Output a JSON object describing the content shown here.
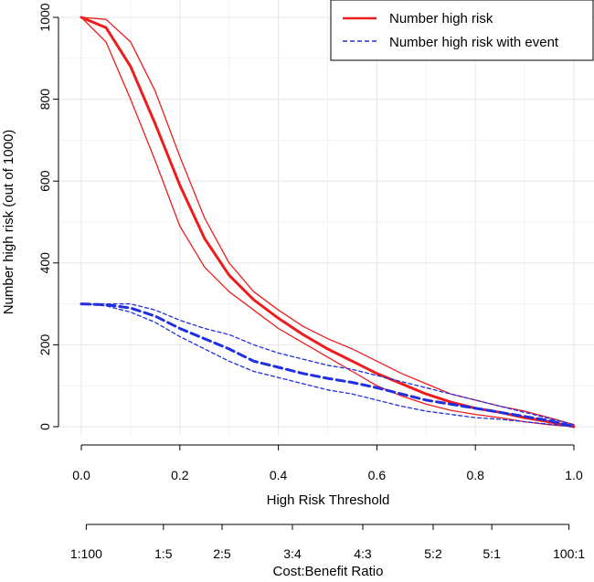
{
  "chart_data": {
    "type": "line",
    "title": "",
    "xlabel": "High Risk Threshold",
    "ylabel": "Number high risk (out of 1000)",
    "xlim": [
      0,
      1
    ],
    "ylim": [
      0,
      1000
    ],
    "x_ticks": [
      "0.0",
      "0.2",
      "0.4",
      "0.6",
      "0.8",
      "1.0"
    ],
    "y_ticks": [
      "0",
      "200",
      "400",
      "600",
      "800",
      "1000"
    ],
    "grid": true,
    "legend_position": "top-right",
    "secondary_axis": {
      "label": "Cost:Benefit Ratio",
      "ticks": [
        {
          "x": 0.01,
          "label": "1:100"
        },
        {
          "x": 0.1667,
          "label": "1:5"
        },
        {
          "x": 0.2857,
          "label": "2:5"
        },
        {
          "x": 0.4286,
          "label": "3:4"
        },
        {
          "x": 0.5714,
          "label": "4:3"
        },
        {
          "x": 0.7143,
          "label": "5:2"
        },
        {
          "x": 0.8333,
          "label": "5:1"
        },
        {
          "x": 0.99,
          "label": "100:1"
        }
      ]
    },
    "x": [
      0.0,
      0.05,
      0.1,
      0.15,
      0.2,
      0.25,
      0.3,
      0.35,
      0.4,
      0.45,
      0.5,
      0.55,
      0.6,
      0.65,
      0.7,
      0.75,
      0.8,
      0.85,
      0.9,
      0.95,
      1.0
    ],
    "series": [
      {
        "name": "Number high risk",
        "legend": true,
        "color": "#ee1c1c",
        "dash": false,
        "width": 3,
        "values": [
          1000,
          975,
          880,
          740,
          590,
          460,
          370,
          310,
          265,
          225,
          190,
          160,
          130,
          105,
          80,
          60,
          45,
          35,
          22,
          12,
          0
        ]
      },
      {
        "name": "Number high risk upper",
        "legend": false,
        "color": "#ee1c1c",
        "dash": false,
        "width": 1.3,
        "values": [
          1000,
          995,
          940,
          820,
          660,
          510,
          400,
          330,
          285,
          245,
          215,
          190,
          160,
          130,
          105,
          80,
          65,
          50,
          38,
          22,
          5
        ]
      },
      {
        "name": "Number high risk lower",
        "legend": false,
        "color": "#ee1c1c",
        "dash": false,
        "width": 1.3,
        "values": [
          1000,
          940,
          800,
          650,
          490,
          390,
          330,
          285,
          240,
          205,
          170,
          135,
          100,
          75,
          55,
          40,
          30,
          22,
          12,
          5,
          0
        ]
      },
      {
        "name": "Number high risk with event",
        "legend": true,
        "color": "#1f2fe0",
        "dash": true,
        "width": 3,
        "values": [
          300,
          298,
          290,
          270,
          240,
          215,
          190,
          160,
          145,
          130,
          118,
          108,
          95,
          80,
          65,
          55,
          45,
          35,
          25,
          15,
          0
        ]
      },
      {
        "name": "Number high risk with event upper",
        "legend": false,
        "color": "#1f2fe0",
        "dash": true,
        "width": 1.3,
        "values": [
          300,
          300,
          300,
          285,
          260,
          240,
          225,
          200,
          180,
          165,
          150,
          140,
          125,
          110,
          95,
          80,
          65,
          50,
          35,
          20,
          5
        ]
      },
      {
        "name": "Number high risk with event lower",
        "legend": false,
        "color": "#1f2fe0",
        "dash": true,
        "width": 1.3,
        "values": [
          300,
          295,
          280,
          255,
          220,
          190,
          160,
          135,
          120,
          105,
          90,
          80,
          65,
          50,
          38,
          30,
          22,
          18,
          12,
          6,
          0
        ]
      }
    ]
  }
}
